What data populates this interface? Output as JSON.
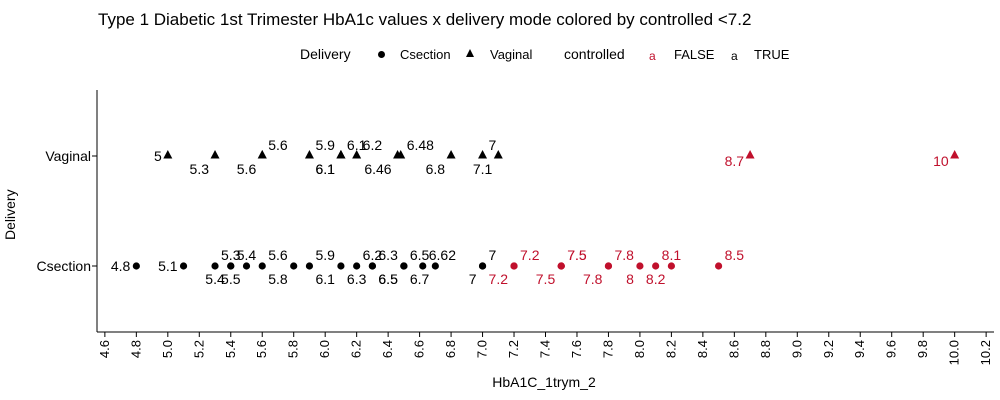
{
  "chart_data": {
    "type": "scatter",
    "title": "Type 1 Diabetic 1st Trimester HbA1c values x delivery mode colored by controlled <7.2",
    "xlabel": "HbA1C_1trym_2",
    "ylabel": "Delivery",
    "categories": [
      "Csection",
      "Vaginal"
    ],
    "xlim": [
      4.55,
      10.25
    ],
    "xticks": [
      "4.6",
      "4.8",
      "5.0",
      "5.2",
      "5.4",
      "5.6",
      "5.8",
      "6.0",
      "6.2",
      "6.4",
      "6.6",
      "6.8",
      "7.0",
      "7.2",
      "7.4",
      "7.6",
      "7.8",
      "8.0",
      "8.2",
      "8.4",
      "8.6",
      "8.8",
      "9.0",
      "9.2",
      "9.4",
      "9.6",
      "9.8",
      "10.0",
      "10.2"
    ],
    "legend": {
      "shape_title": "Delivery",
      "shape_entries": [
        "Csection",
        "Vaginal"
      ],
      "color_title": "controlled",
      "color_entries": [
        "FALSE",
        "TRUE"
      ],
      "key_glyph": "a",
      "placement": "top"
    },
    "colors": {
      "FALSE": "#c0102c",
      "TRUE": "#000000"
    },
    "series": [
      {
        "name": "Csection",
        "shape": "circle",
        "points": [
          {
            "x": 4.8,
            "label": "4.8",
            "controlled": "TRUE"
          },
          {
            "x": 5.1,
            "label": "5.1",
            "controlled": "TRUE"
          },
          {
            "x": 5.3,
            "label": "5.3",
            "controlled": "TRUE"
          },
          {
            "x": 5.4,
            "label": "5.4",
            "controlled": "TRUE"
          },
          {
            "x": 5.4,
            "label": "5.4",
            "controlled": "TRUE"
          },
          {
            "x": 5.5,
            "label": "5.5",
            "controlled": "TRUE"
          },
          {
            "x": 5.6,
            "label": "5.6",
            "controlled": "TRUE"
          },
          {
            "x": 5.8,
            "label": "5.8",
            "controlled": "TRUE"
          },
          {
            "x": 5.9,
            "label": "5.9",
            "controlled": "TRUE"
          },
          {
            "x": 6.1,
            "label": "6.1",
            "controlled": "TRUE"
          },
          {
            "x": 6.2,
            "label": "6.2",
            "controlled": "TRUE"
          },
          {
            "x": 6.3,
            "label": "6.3",
            "controlled": "TRUE"
          },
          {
            "x": 6.3,
            "label": "6.3",
            "controlled": "TRUE"
          },
          {
            "x": 6.5,
            "label": "6.5",
            "controlled": "TRUE"
          },
          {
            "x": 6.5,
            "label": "6.5",
            "controlled": "TRUE"
          },
          {
            "x": 6.5,
            "label": "6.5",
            "controlled": "TRUE"
          },
          {
            "x": 6.62,
            "label": "6.62",
            "controlled": "TRUE"
          },
          {
            "x": 6.7,
            "label": "6.7",
            "controlled": "TRUE"
          },
          {
            "x": 7.0,
            "label": "7",
            "controlled": "TRUE"
          },
          {
            "x": 7.0,
            "label": "7",
            "controlled": "TRUE"
          },
          {
            "x": 7.2,
            "label": "7.2",
            "controlled": "FALSE"
          },
          {
            "x": 7.2,
            "label": "7.2",
            "controlled": "FALSE"
          },
          {
            "x": 7.5,
            "label": "7.5",
            "controlled": "FALSE"
          },
          {
            "x": 7.5,
            "label": "7.5",
            "controlled": "FALSE"
          },
          {
            "x": 7.5,
            "label": "7.5",
            "controlled": "FALSE"
          },
          {
            "x": 7.8,
            "label": "7.8",
            "controlled": "FALSE"
          },
          {
            "x": 7.8,
            "label": "7.8",
            "controlled": "FALSE"
          },
          {
            "x": 8.0,
            "label": "8",
            "controlled": "FALSE"
          },
          {
            "x": 8.1,
            "label": "8.1",
            "controlled": "FALSE"
          },
          {
            "x": 8.2,
            "label": "8.2",
            "controlled": "FALSE"
          },
          {
            "x": 8.5,
            "label": "8.5",
            "controlled": "FALSE"
          }
        ]
      },
      {
        "name": "Vaginal",
        "shape": "triangle",
        "points": [
          {
            "x": 5.0,
            "label": "5",
            "controlled": "TRUE"
          },
          {
            "x": 5.3,
            "label": "5.3",
            "controlled": "TRUE"
          },
          {
            "x": 5.6,
            "label": "5.6",
            "controlled": "TRUE"
          },
          {
            "x": 5.6,
            "label": "5.6",
            "controlled": "TRUE"
          },
          {
            "x": 5.9,
            "label": "5.9",
            "controlled": "TRUE"
          },
          {
            "x": 6.1,
            "label": "6.1",
            "controlled": "TRUE"
          },
          {
            "x": 6.1,
            "label": "6.1",
            "controlled": "TRUE"
          },
          {
            "x": 6.1,
            "label": "6.1",
            "controlled": "TRUE"
          },
          {
            "x": 6.2,
            "label": "6.2",
            "controlled": "TRUE"
          },
          {
            "x": 6.46,
            "label": "6.46",
            "controlled": "TRUE"
          },
          {
            "x": 6.48,
            "label": "6.48",
            "controlled": "TRUE"
          },
          {
            "x": 6.8,
            "label": "6.8",
            "controlled": "TRUE"
          },
          {
            "x": 7.0,
            "label": "7",
            "controlled": "TRUE"
          },
          {
            "x": 7.1,
            "label": "7.1",
            "controlled": "TRUE"
          },
          {
            "x": 8.7,
            "label": "8.7",
            "controlled": "FALSE"
          },
          {
            "x": 10.0,
            "label": "10",
            "controlled": "FALSE"
          }
        ]
      }
    ]
  }
}
